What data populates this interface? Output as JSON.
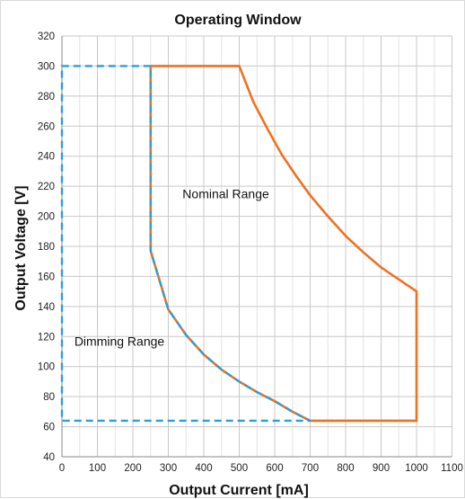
{
  "chart_data": {
    "type": "line",
    "title": "Operating Window",
    "xlabel": "Output Current [mA]",
    "ylabel": "Output Voltage [V]",
    "xlim": [
      0,
      1100
    ],
    "ylim": [
      40,
      320
    ],
    "x_ticks": [
      0,
      100,
      200,
      300,
      400,
      500,
      600,
      700,
      800,
      900,
      1000,
      1100
    ],
    "y_ticks": [
      40,
      60,
      80,
      100,
      120,
      140,
      160,
      180,
      200,
      220,
      240,
      260,
      280,
      300,
      320
    ],
    "x_minor_step": 50,
    "grid": true,
    "legend": "none",
    "series": [
      {
        "style": "solid",
        "color": "#f07020",
        "points": [
          [
            250,
            300
          ],
          [
            500,
            300
          ],
          [
            540,
            276
          ],
          [
            580,
            258
          ],
          [
            620,
            241
          ],
          [
            660,
            227
          ],
          [
            700,
            214
          ],
          [
            750,
            200
          ],
          [
            800,
            187
          ],
          [
            850,
            176
          ],
          [
            900,
            166
          ],
          [
            1000,
            150
          ],
          [
            1000,
            64
          ],
          [
            700,
            64
          ],
          [
            650,
            70
          ],
          [
            600,
            77
          ],
          [
            550,
            83
          ],
          [
            500,
            90
          ],
          [
            450,
            98
          ],
          [
            400,
            108
          ],
          [
            350,
            121
          ],
          [
            300,
            138
          ],
          [
            250,
            177
          ],
          [
            250,
            300
          ]
        ]
      },
      {
        "style": "dashed",
        "color": "#2aa0d8",
        "points": [
          [
            250,
            300
          ],
          [
            0,
            300
          ],
          [
            0,
            64
          ],
          [
            700,
            64
          ],
          [
            650,
            70
          ],
          [
            600,
            77
          ],
          [
            550,
            83
          ],
          [
            500,
            90
          ],
          [
            450,
            98
          ],
          [
            400,
            108
          ],
          [
            350,
            121
          ],
          [
            300,
            138
          ],
          [
            250,
            177
          ],
          [
            250,
            300
          ]
        ]
      }
    ],
    "annotations": [
      {
        "text": "Nominal Range",
        "x": 340,
        "y": 212
      },
      {
        "text": "Dimming Range",
        "x": 35,
        "y": 114
      }
    ]
  }
}
